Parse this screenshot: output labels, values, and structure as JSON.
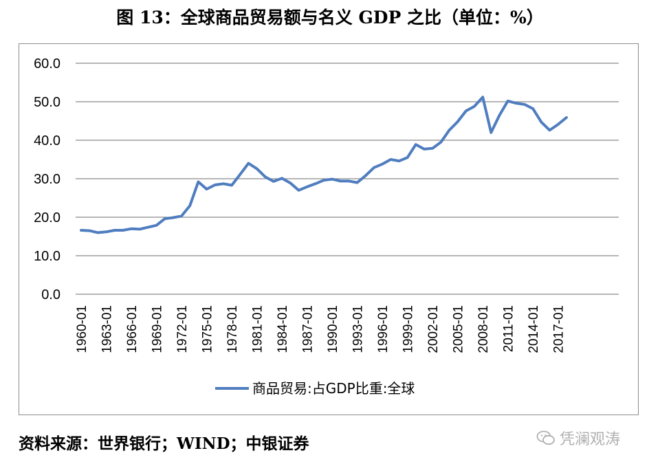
{
  "title": "图 13：全球商品贸易额与名义 GDP 之比（单位：%）",
  "source": "资料来源：世界银行；WIND；中银证券",
  "watermark": {
    "text": "凭澜观涛",
    "icon": "wechat-icon"
  },
  "chart_data": {
    "type": "line",
    "title": "",
    "xlabel": "",
    "ylabel": "",
    "ylim": [
      0,
      60
    ],
    "yticks": [
      "0.0",
      "10.0",
      "20.0",
      "30.0",
      "40.0",
      "50.0",
      "60.0"
    ],
    "xtick_labels": [
      "1960-01",
      "1963-01",
      "1966-01",
      "1969-01",
      "1972-01",
      "1975-01",
      "1978-01",
      "1981-01",
      "1984-01",
      "1987-01",
      "1990-01",
      "1993-01",
      "1996-01",
      "1999-01",
      "2002-01",
      "2005-01",
      "2008-01",
      "2011-01",
      "2014-01",
      "2017-01"
    ],
    "grid": true,
    "legend_position": "bottom",
    "series_color": "#4f7dbf",
    "x": [
      "1960",
      "1961",
      "1962",
      "1963",
      "1964",
      "1965",
      "1966",
      "1967",
      "1968",
      "1969",
      "1970",
      "1971",
      "1972",
      "1973",
      "1974",
      "1975",
      "1976",
      "1977",
      "1978",
      "1979",
      "1980",
      "1981",
      "1982",
      "1983",
      "1984",
      "1985",
      "1986",
      "1987",
      "1988",
      "1989",
      "1990",
      "1991",
      "1992",
      "1993",
      "1994",
      "1995",
      "1996",
      "1997",
      "1998",
      "1999",
      "2000",
      "2001",
      "2002",
      "2003",
      "2004",
      "2005",
      "2006",
      "2007",
      "2008",
      "2009",
      "2010",
      "2011",
      "2012",
      "2013",
      "2014",
      "2015",
      "2016",
      "2017",
      "2018"
    ],
    "series": [
      {
        "name": "商品贸易:占GDP比重:全球",
        "values": [
          16.6,
          16.5,
          16.0,
          16.2,
          16.6,
          16.6,
          17.0,
          16.9,
          17.4,
          17.9,
          19.6,
          19.9,
          20.3,
          23.0,
          29.2,
          27.3,
          28.4,
          28.7,
          28.3,
          31.1,
          34.0,
          32.6,
          30.5,
          29.3,
          30.1,
          28.9,
          27.0,
          27.9,
          28.7,
          29.6,
          29.9,
          29.4,
          29.4,
          29.0,
          30.8,
          32.9,
          33.8,
          35.0,
          34.6,
          35.5,
          38.9,
          37.7,
          37.9,
          39.5,
          42.6,
          44.8,
          47.6,
          48.8,
          51.2,
          42.0,
          46.5,
          50.2,
          49.6,
          49.3,
          48.2,
          44.7,
          42.6,
          44.1,
          45.9
        ]
      }
    ]
  }
}
